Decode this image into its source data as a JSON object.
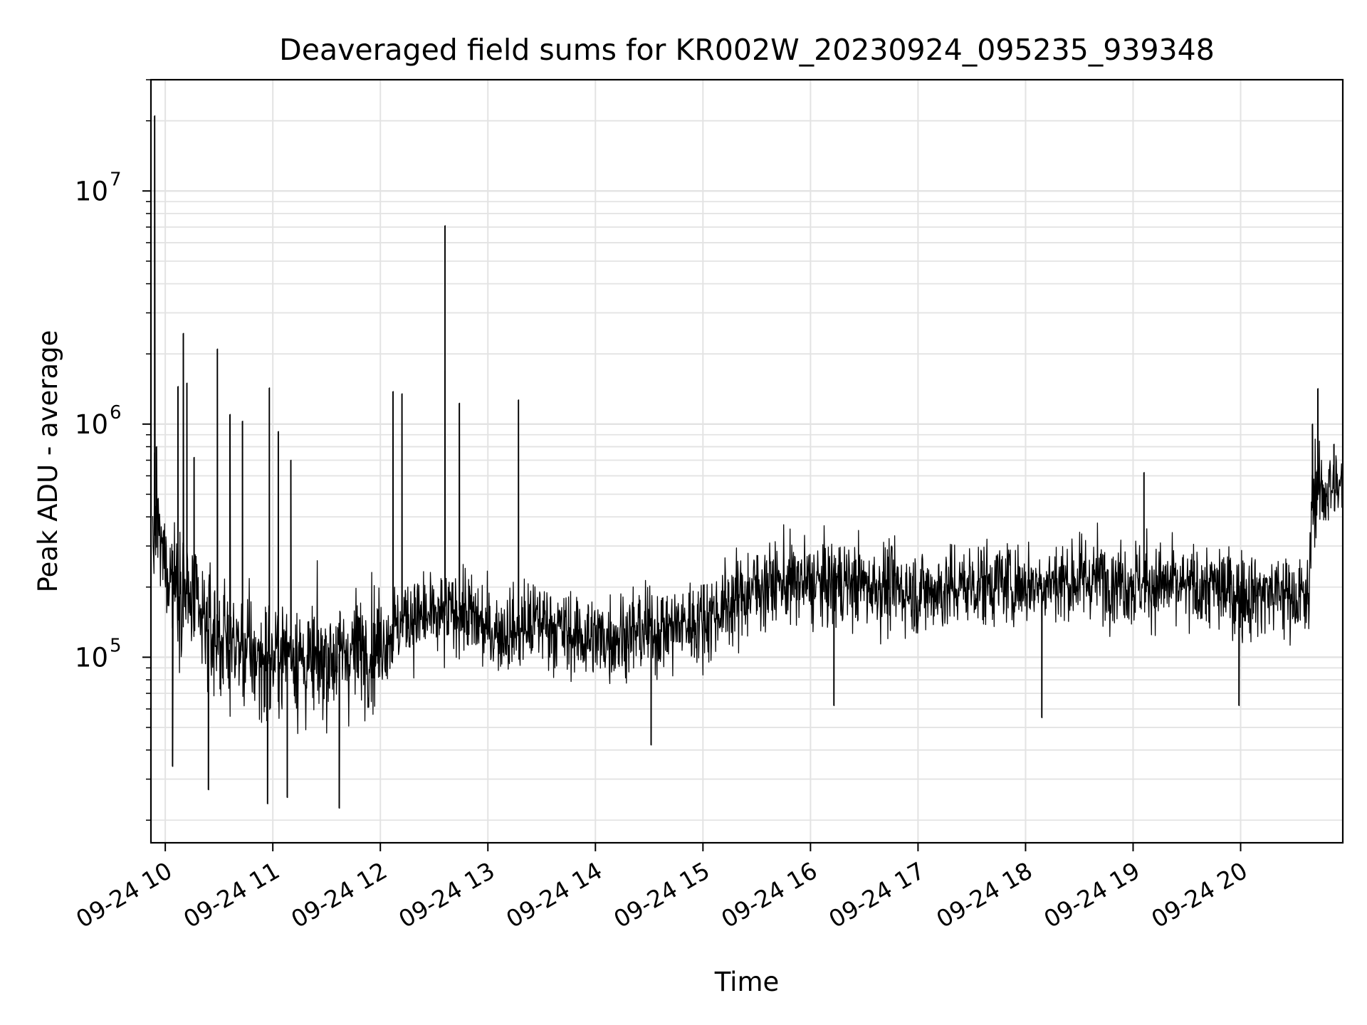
{
  "chart_data": {
    "type": "line",
    "title": "Deaveraged field sums for KR002W_20230924_095235_939348",
    "xlabel": "Time",
    "ylabel": "Peak ADU - average",
    "yscale": "log",
    "xlim": [
      "2023-09-24 09:52",
      "2023-09-24 20:57"
    ],
    "ylim": [
      16000,
      30000000
    ],
    "grid": true,
    "line_color": "#000000",
    "grid_color": "#e3e3e3",
    "x_tick_labels": [
      "09-24 10",
      "09-24 11",
      "09-24 12",
      "09-24 13",
      "09-24 14",
      "09-24 15",
      "09-24 16",
      "09-24 17",
      "09-24 18",
      "09-24 19",
      "09-24 20"
    ],
    "x_ticks": [
      "2023-09-24 10:00",
      "2023-09-24 11:00",
      "2023-09-24 12:00",
      "2023-09-24 13:00",
      "2023-09-24 14:00",
      "2023-09-24 15:00",
      "2023-09-24 16:00",
      "2023-09-24 17:00",
      "2023-09-24 18:00",
      "2023-09-24 19:00",
      "2023-09-24 20:00"
    ],
    "y_ticks": [
      {
        "value": 100000,
        "base": "10",
        "exp": "5"
      },
      {
        "value": 1000000,
        "base": "10",
        "exp": "6"
      },
      {
        "value": 10000000,
        "base": "10",
        "exp": "7"
      }
    ],
    "series": [
      {
        "x": [
          "2023-09-24 09:52",
          "2023-09-24 09:55",
          "2023-09-24 10:00",
          "2023-09-24 10:10",
          "2023-09-24 10:20",
          "2023-09-24 10:30",
          "2023-09-24 10:40",
          "2023-09-24 10:50",
          "2023-09-24 11:00",
          "2023-09-24 11:10",
          "2023-09-24 11:20",
          "2023-09-24 11:30",
          "2023-09-24 11:40",
          "2023-09-24 11:50",
          "2023-09-24 12:00",
          "2023-09-24 12:15",
          "2023-09-24 12:30",
          "2023-09-24 12:45",
          "2023-09-24 13:00",
          "2023-09-24 13:15",
          "2023-09-24 13:30",
          "2023-09-24 13:45",
          "2023-09-24 14:00",
          "2023-09-24 14:15",
          "2023-09-24 14:30",
          "2023-09-24 14:45",
          "2023-09-24 15:00",
          "2023-09-24 15:15",
          "2023-09-24 15:30",
          "2023-09-24 15:45",
          "2023-09-24 16:00",
          "2023-09-24 16:15",
          "2023-09-24 16:30",
          "2023-09-24 16:45",
          "2023-09-24 17:00",
          "2023-09-24 17:15",
          "2023-09-24 17:30",
          "2023-09-24 17:45",
          "2023-09-24 18:00",
          "2023-09-24 18:15",
          "2023-09-24 18:30",
          "2023-09-24 18:45",
          "2023-09-24 19:00",
          "2023-09-24 19:15",
          "2023-09-24 19:30",
          "2023-09-24 19:45",
          "2023-09-24 20:00",
          "2023-09-24 20:15",
          "2023-09-24 20:30",
          "2023-09-24 20:38",
          "2023-09-24 20:40",
          "2023-09-24 20:50",
          "2023-09-24 20:57"
        ],
        "values": [
          300000,
          350000,
          250000,
          200000,
          140000,
          120000,
          110000,
          100000,
          95000,
          110000,
          90000,
          100000,
          105000,
          110000,
          115000,
          150000,
          145000,
          160000,
          130000,
          130000,
          145000,
          125000,
          120000,
          125000,
          130000,
          135000,
          145000,
          170000,
          200000,
          210000,
          205000,
          210000,
          205000,
          200000,
          190000,
          195000,
          205000,
          210000,
          205000,
          210000,
          215000,
          220000,
          210000,
          205000,
          195000,
          200000,
          185000,
          190000,
          185000,
          170000,
          500000,
          530000,
          520000
        ]
      }
    ],
    "spikes": [
      {
        "x": "2023-09-24 09:54",
        "y": 21000000
      },
      {
        "x": "2023-09-24 09:55",
        "y": 800000
      },
      {
        "x": "2023-09-24 10:10",
        "y": 2450000
      },
      {
        "x": "2023-09-24 10:07",
        "y": 1450000
      },
      {
        "x": "2023-09-24 10:12",
        "y": 1500000
      },
      {
        "x": "2023-09-24 10:16",
        "y": 720000
      },
      {
        "x": "2023-09-24 10:29",
        "y": 2100000
      },
      {
        "x": "2023-09-24 10:36",
        "y": 1100000
      },
      {
        "x": "2023-09-24 10:43",
        "y": 1030000
      },
      {
        "x": "2023-09-24 10:58",
        "y": 1430000
      },
      {
        "x": "2023-09-24 11:03",
        "y": 930000
      },
      {
        "x": "2023-09-24 11:10",
        "y": 700000
      },
      {
        "x": "2023-09-24 12:07",
        "y": 1380000
      },
      {
        "x": "2023-09-24 12:12",
        "y": 1350000
      },
      {
        "x": "2023-09-24 12:36",
        "y": 7100000
      },
      {
        "x": "2023-09-24 12:36",
        "y": 1700000
      },
      {
        "x": "2023-09-24 12:44",
        "y": 1230000
      },
      {
        "x": "2023-09-24 13:17",
        "y": 1270000
      },
      {
        "x": "2023-09-24 19:06",
        "y": 620000
      },
      {
        "x": "2023-09-24 20:40",
        "y": 1000000
      },
      {
        "x": "2023-09-24 20:43",
        "y": 1420000
      },
      {
        "x": "2023-09-24 20:52",
        "y": 820000
      },
      {
        "x": "2023-09-24 10:04",
        "y": 34000
      },
      {
        "x": "2023-09-24 10:24",
        "y": 27000
      },
      {
        "x": "2023-09-24 10:57",
        "y": 23500
      },
      {
        "x": "2023-09-24 11:37",
        "y": 22500
      },
      {
        "x": "2023-09-24 11:08",
        "y": 25000
      },
      {
        "x": "2023-09-24 14:31",
        "y": 42000
      },
      {
        "x": "2023-09-24 18:09",
        "y": 55000
      },
      {
        "x": "2023-09-24 16:13",
        "y": 62000
      },
      {
        "x": "2023-09-24 19:59",
        "y": 62000
      }
    ]
  }
}
